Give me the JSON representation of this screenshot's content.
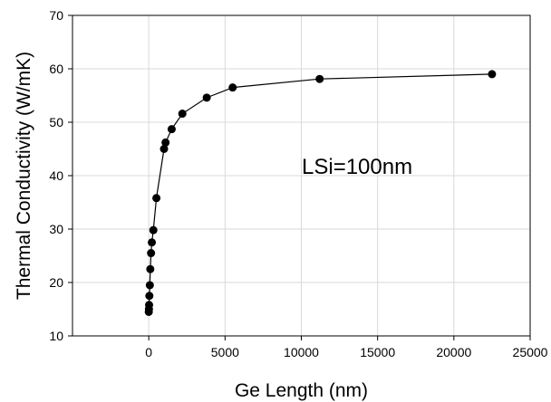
{
  "chart_data": {
    "type": "scatter",
    "title": "",
    "xlabel": "Ge Length (nm)",
    "ylabel": "Thermal Conductivity (W/mK)",
    "xlim": [
      -5000,
      25000
    ],
    "ylim": [
      10,
      70
    ],
    "xticks": [
      0,
      5000,
      10000,
      15000,
      20000,
      25000
    ],
    "yticks": [
      10,
      20,
      30,
      40,
      50,
      60,
      70
    ],
    "grid": true,
    "legend": "none",
    "annotation": "LSi=100nm",
    "marker_color": "#000000",
    "line_color": "#000000",
    "series": [
      {
        "x": [
          0,
          10,
          20,
          40,
          70,
          100,
          150,
          200,
          300,
          500,
          1000,
          1100,
          1500,
          2200,
          3800,
          5500,
          11200,
          22500
        ],
        "y": [
          14.5,
          15.0,
          15.8,
          17.5,
          19.5,
          22.5,
          25.5,
          27.5,
          29.8,
          35.8,
          45.0,
          46.2,
          48.7,
          51.6,
          54.6,
          56.5,
          58.1,
          59.0
        ]
      }
    ]
  }
}
